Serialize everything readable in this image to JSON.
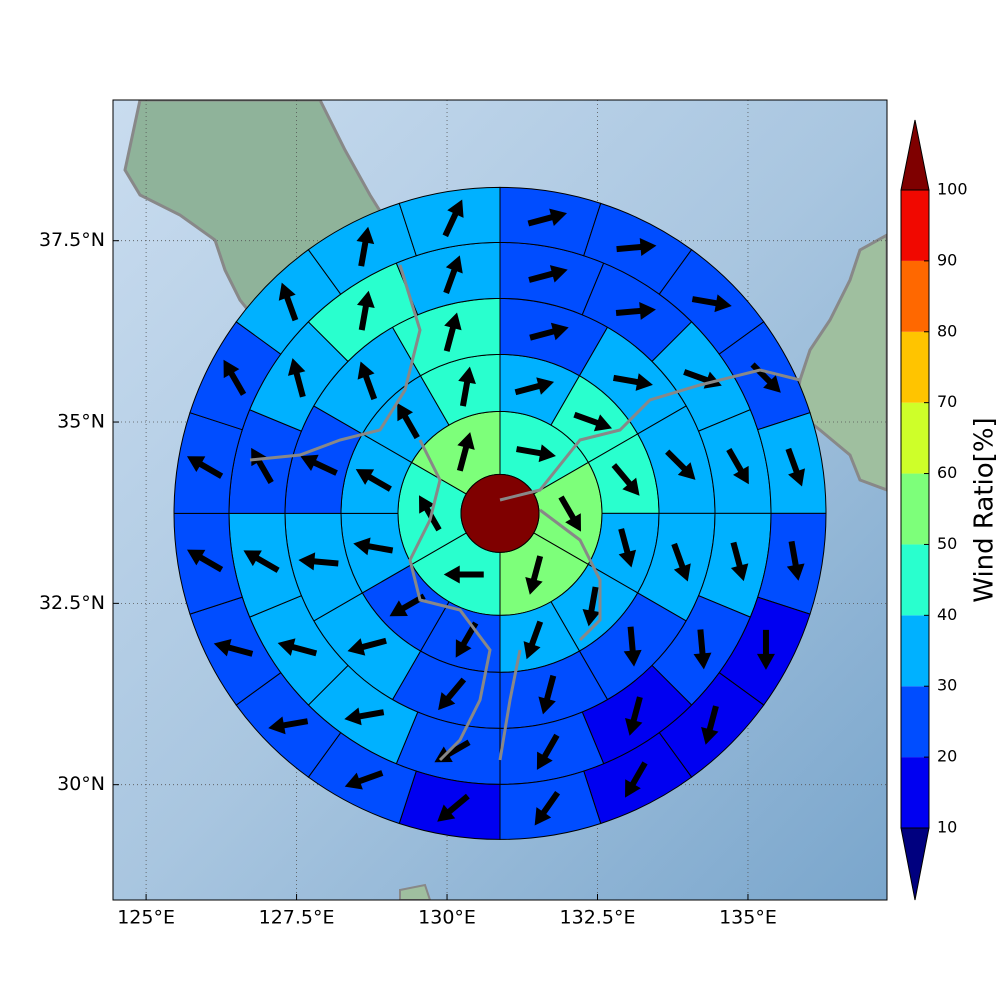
{
  "chart_data": {
    "type": "polar-sector-map",
    "xlim": [
      124.45,
      137.31
    ],
    "ylim": [
      28.41,
      39.44
    ],
    "xticks": [
      {
        "value": 125,
        "label": "125°E"
      },
      {
        "value": 127.5,
        "label": "127.5°E"
      },
      {
        "value": 130,
        "label": "130°E"
      },
      {
        "value": 132.5,
        "label": "132.5°E"
      },
      {
        "value": 135,
        "label": "135°E"
      }
    ],
    "yticks": [
      {
        "value": 30,
        "label": "30°N"
      },
      {
        "value": 32.5,
        "label": "32.5°N"
      },
      {
        "value": 35,
        "label": "35°N"
      },
      {
        "value": 37.5,
        "label": "37.5°N"
      }
    ],
    "grid": true,
    "center": {
      "lon": 130.88,
      "lat": 33.74,
      "value": 105
    },
    "rings": [
      {
        "values": [
          45,
          55,
          55,
          45,
          45,
          55
        ],
        "directions": [
          100,
          150,
          195,
          270,
          330,
          15
        ]
      },
      {
        "values": [
          35,
          45,
          45,
          35,
          35,
          35,
          25,
          25,
          35,
          35,
          35,
          45
        ],
        "directions": [
          75,
          110,
          140,
          165,
          190,
          200,
          210,
          240,
          280,
          300,
          330,
          10
        ]
      },
      {
        "values": [
          25,
          35,
          35,
          35,
          25,
          25,
          25,
          35,
          35,
          25,
          35,
          45
        ],
        "directions": [
          75,
          100,
          135,
          160,
          175,
          195,
          220,
          255,
          275,
          295,
          340,
          15
        ]
      },
      {
        "values": [
          25,
          25,
          35,
          35,
          35,
          25,
          15,
          25,
          25,
          35,
          35,
          35,
          25,
          35,
          45,
          35
        ],
        "directions": [
          75,
          85,
          110,
          150,
          165,
          175,
          195,
          210,
          240,
          260,
          285,
          300,
          330,
          345,
          10,
          20
        ]
      },
      {
        "values": [
          25,
          25,
          25,
          25,
          35,
          25,
          15,
          15,
          15,
          25,
          15,
          25,
          25,
          25,
          25,
          25,
          25,
          35,
          35,
          35
        ],
        "directions": [
          75,
          85,
          100,
          135,
          160,
          170,
          180,
          195,
          210,
          215,
          230,
          250,
          260,
          285,
          300,
          300,
          330,
          340,
          10,
          25
        ]
      }
    ],
    "colorbar": {
      "label": "Wind Ratio[%]",
      "ticks": [
        10,
        20,
        30,
        40,
        50,
        60,
        70,
        80,
        90,
        100
      ],
      "colors": [
        "#00007f",
        "#0000f1",
        "#004dff",
        "#00b1ff",
        "#29ffce",
        "#7dff7a",
        "#ceff29",
        "#ffc400",
        "#ff6800",
        "#f10800",
        "#7f0000"
      ],
      "extend": "both"
    }
  }
}
